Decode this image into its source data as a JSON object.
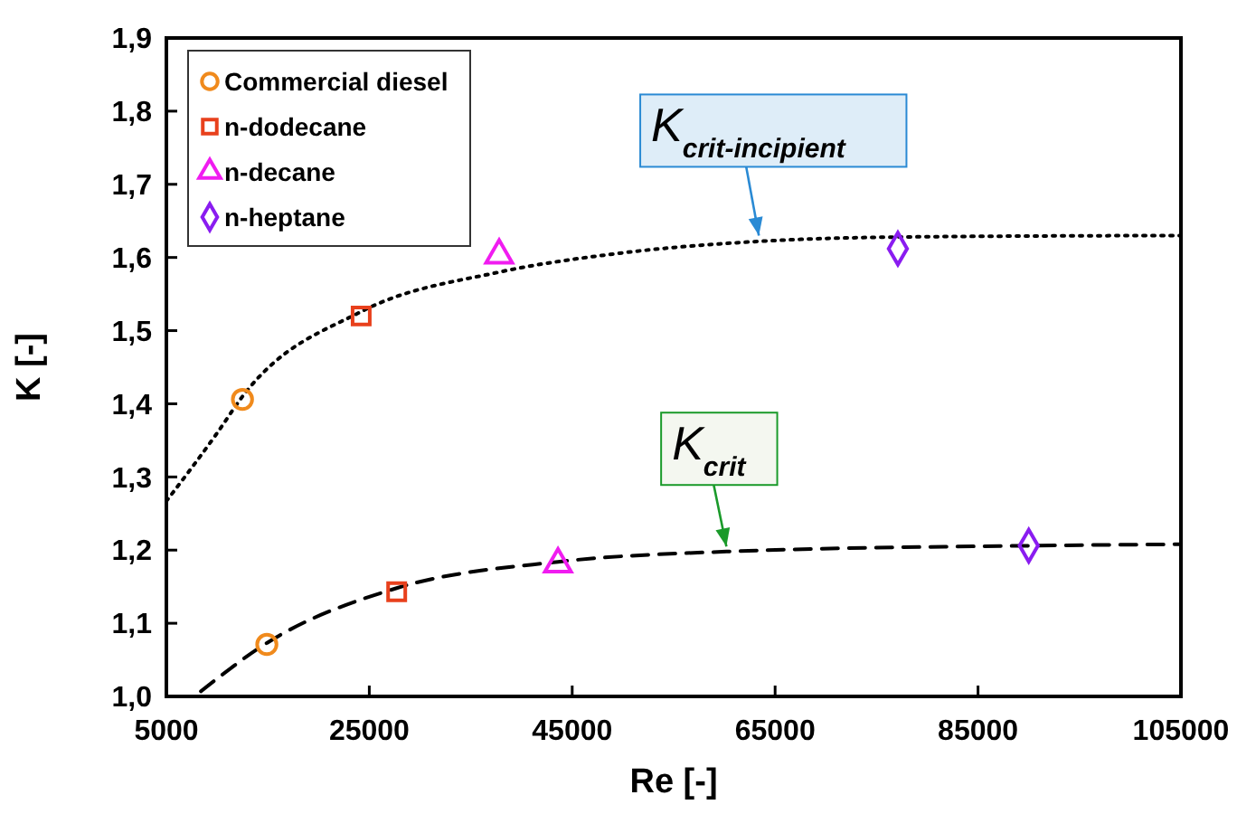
{
  "chart_data": {
    "type": "scatter",
    "xlabel": "Re [-]",
    "ylabel": "K [-]",
    "xlim": [
      5000,
      105000
    ],
    "xticks": [
      5000,
      25000,
      45000,
      65000,
      85000,
      105000
    ],
    "ylim": [
      1.0,
      1.9
    ],
    "yticks": [
      {
        "value": 1.0,
        "label": "1,0"
      },
      {
        "value": 1.1,
        "label": "1,1"
      },
      {
        "value": 1.2,
        "label": "1,2"
      },
      {
        "value": 1.3,
        "label": "1,3"
      },
      {
        "value": 1.4,
        "label": "1,4"
      },
      {
        "value": 1.5,
        "label": "1,5"
      },
      {
        "value": 1.6,
        "label": "1,6"
      },
      {
        "value": 1.7,
        "label": "1,7"
      },
      {
        "value": 1.8,
        "label": "1,8"
      },
      {
        "value": 1.9,
        "label": "1,9"
      }
    ],
    "grid": false,
    "legend": "top left",
    "series": [
      {
        "type": "line",
        "color": "#000000",
        "line_style": "dotted",
        "x": [
          5000,
          10000,
          12500,
          24200,
          37800,
          49200,
          63400,
          77700,
          105000
        ],
        "values": [
          1.267,
          1.36,
          1.41,
          1.526,
          1.58,
          1.605,
          1.622,
          1.628,
          1.63
        ]
      },
      {
        "type": "line",
        "color": "#000000",
        "line_style": "dashed",
        "x": [
          8400,
          14900,
          27700,
          43600,
          60200,
          90000,
          105000
        ],
        "values": [
          1.007,
          1.073,
          1.148,
          1.184,
          1.198,
          1.206,
          1.208
        ]
      },
      {
        "name": "Commercial diesel",
        "color": "#f08a1c",
        "marker": "circle",
        "x": [
          12500,
          14900
        ],
        "values": [
          1.406,
          1.071
        ]
      },
      {
        "name": "n-dodecane",
        "color": "#e8401c",
        "marker": "square",
        "x": [
          24200,
          27700
        ],
        "values": [
          1.52,
          1.143
        ]
      },
      {
        "name": "n-decane",
        "color": "#f01cf0",
        "marker": "triangle",
        "x": [
          37800,
          43600
        ],
        "values": [
          1.603,
          1.181
        ]
      },
      {
        "name": "n-heptane",
        "color": "#8a1cf0",
        "marker": "diamond",
        "x": [
          77100,
          90000
        ],
        "values": [
          1.612,
          1.206
        ]
      }
    ],
    "annotations": [
      {
        "text": "K$_{crit-incipient}$",
        "x": 63400,
        "y": 1.625
      },
      {
        "text": "K$_{crit}$",
        "x": 60200,
        "y": 1.2
      }
    ]
  }
}
